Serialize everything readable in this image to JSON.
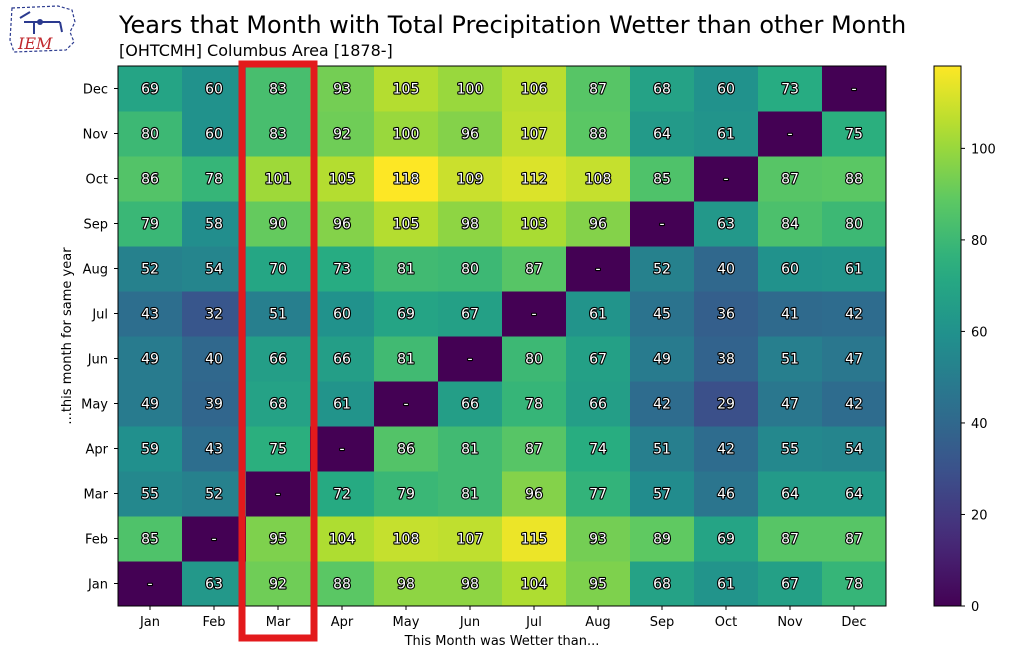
{
  "logo": {
    "text": "IEM"
  },
  "chart_data": {
    "type": "heatmap",
    "title": "Years that Month with Total Precipitation Wetter than other Month",
    "subtitle": "[OHTCMH] Columbus Area [1878-]",
    "xlabel": "This Month was Wetter than...",
    "ylabel": "...this month for same year",
    "x_categories": [
      "Jan",
      "Feb",
      "Mar",
      "Apr",
      "May",
      "Jun",
      "Jul",
      "Aug",
      "Sep",
      "Oct",
      "Nov",
      "Dec"
    ],
    "y_categories": [
      "Jan",
      "Feb",
      "Mar",
      "Apr",
      "May",
      "Jun",
      "Jul",
      "Aug",
      "Sep",
      "Oct",
      "Nov",
      "Dec"
    ],
    "values": [
      [
        null,
        63,
        92,
        88,
        98,
        98,
        104,
        95,
        68,
        61,
        67,
        78
      ],
      [
        85,
        null,
        95,
        104,
        108,
        107,
        115,
        93,
        89,
        69,
        87,
        87
      ],
      [
        55,
        52,
        null,
        72,
        79,
        81,
        96,
        77,
        57,
        46,
        64,
        64
      ],
      [
        59,
        43,
        75,
        null,
        86,
        81,
        87,
        74,
        51,
        42,
        55,
        54
      ],
      [
        49,
        39,
        68,
        61,
        null,
        66,
        78,
        66,
        42,
        29,
        47,
        42
      ],
      [
        49,
        40,
        66,
        66,
        81,
        null,
        80,
        67,
        49,
        38,
        51,
        47
      ],
      [
        43,
        32,
        51,
        60,
        69,
        67,
        null,
        61,
        45,
        36,
        41,
        42
      ],
      [
        52,
        54,
        70,
        73,
        81,
        80,
        87,
        null,
        52,
        40,
        60,
        61
      ],
      [
        79,
        58,
        90,
        96,
        105,
        98,
        103,
        96,
        null,
        63,
        84,
        80
      ],
      [
        86,
        78,
        101,
        105,
        118,
        109,
        112,
        108,
        85,
        null,
        87,
        88
      ],
      [
        80,
        60,
        83,
        92,
        100,
        96,
        107,
        88,
        64,
        61,
        null,
        75
      ],
      [
        69,
        60,
        83,
        93,
        105,
        100,
        106,
        87,
        68,
        60,
        73,
        null
      ]
    ],
    "missing_label": "-",
    "colormap": "viridis",
    "vmin": 0,
    "vmax": 118,
    "colorbar_ticks": [
      0,
      20,
      40,
      60,
      80,
      100
    ],
    "highlight_column": "Mar",
    "highlight_color": "#e31a1c"
  }
}
